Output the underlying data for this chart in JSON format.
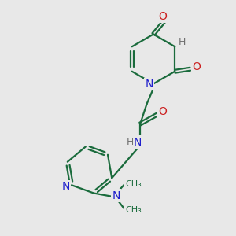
{
  "bg_color": "#e8e8e8",
  "bond_color": "#1a6b3c",
  "N_color": "#2020cc",
  "O_color": "#cc2020",
  "H_color": "#707070",
  "line_width": 1.6,
  "figsize": [
    3.0,
    3.0
  ],
  "dpi": 100,
  "xlim": [
    0,
    10
  ],
  "ylim": [
    0,
    10
  ]
}
